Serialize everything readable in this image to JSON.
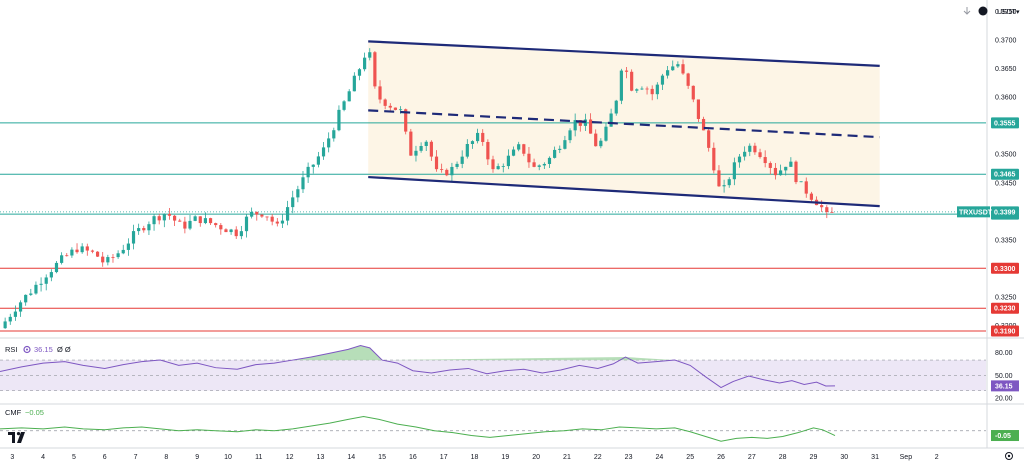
{
  "header": {
    "currency": "USDT",
    "currency_caret": "▾"
  },
  "chart_data": {
    "type": "candlestick",
    "symbol_label": "TRXUSDT",
    "y_ticks": [
      0.319,
      0.32,
      0.325,
      0.33,
      0.335,
      0.34,
      0.345,
      0.35,
      0.355,
      0.36,
      0.365,
      0.37,
      0.375
    ],
    "y_range": [
      0.3183,
      0.376
    ],
    "x_ticks": [
      {
        "label": "3",
        "day": 3
      },
      {
        "label": "4",
        "day": 4
      },
      {
        "label": "5",
        "day": 5
      },
      {
        "label": "6",
        "day": 6
      },
      {
        "label": "7",
        "day": 7
      },
      {
        "label": "8",
        "day": 8
      },
      {
        "label": "9",
        "day": 9
      },
      {
        "label": "10",
        "day": 10
      },
      {
        "label": "11",
        "day": 11
      },
      {
        "label": "12",
        "day": 12
      },
      {
        "label": "13",
        "day": 13
      },
      {
        "label": "14",
        "day": 14
      },
      {
        "label": "15",
        "day": 15
      },
      {
        "label": "16",
        "day": 16
      },
      {
        "label": "17",
        "day": 17
      },
      {
        "label": "18",
        "day": 18
      },
      {
        "label": "19",
        "day": 19
      },
      {
        "label": "20",
        "day": 20
      },
      {
        "label": "21",
        "day": 21
      },
      {
        "label": "22",
        "day": 22
      },
      {
        "label": "23",
        "day": 23
      },
      {
        "label": "24",
        "day": 24
      },
      {
        "label": "25",
        "day": 25
      },
      {
        "label": "26",
        "day": 26
      },
      {
        "label": "27",
        "day": 27
      },
      {
        "label": "28",
        "day": 28
      },
      {
        "label": "29",
        "day": 29
      },
      {
        "label": "30",
        "day": 30
      },
      {
        "label": "31",
        "day": 31
      },
      {
        "label": "Sep",
        "day": 32
      },
      {
        "label": "2",
        "day": 33
      }
    ],
    "x_range": [
      2.6,
      34.6
    ],
    "horizontal_levels": [
      {
        "value": 0.3555,
        "label": "0.3555",
        "color": "#26a69a"
      },
      {
        "value": 0.3465,
        "label": "0.3465",
        "color": "#26a69a"
      },
      {
        "value": 0.3395,
        "label": "0.3395",
        "color": "#26a69a"
      },
      {
        "value": 0.33,
        "label": "0.3300",
        "color": "#e53935"
      },
      {
        "value": 0.323,
        "label": "0.3230",
        "color": "#e53935"
      },
      {
        "value": 0.319,
        "label": "0.3190",
        "color": "#e53935"
      }
    ],
    "current_price": {
      "value": 0.3399,
      "label": "0.3399",
      "color": "#26a69a"
    },
    "channel": {
      "upper": [
        [
          14.55,
          0.3698
        ],
        [
          31.15,
          0.3655
        ]
      ],
      "middle": [
        [
          14.55,
          0.3577
        ],
        [
          31.15,
          0.353
        ]
      ],
      "lower": [
        [
          14.55,
          0.346
        ],
        [
          31.15,
          0.3409
        ]
      ],
      "fill_color": "#fdf5e6",
      "line_color": "#1e2a78"
    },
    "up_color": "#26a69a",
    "down_color": "#ef5350",
    "anchors": [
      [
        2.6,
        0.3195
      ],
      [
        3.2,
        0.3238
      ],
      [
        3.6,
        0.326
      ],
      [
        4.1,
        0.329
      ],
      [
        4.6,
        0.3315
      ],
      [
        5.1,
        0.3335
      ],
      [
        5.7,
        0.3325
      ],
      [
        6.0,
        0.3308
      ],
      [
        6.5,
        0.333
      ],
      [
        7.0,
        0.3362
      ],
      [
        7.5,
        0.3385
      ],
      [
        8.0,
        0.3398
      ],
      [
        8.5,
        0.3372
      ],
      [
        9.0,
        0.3388
      ],
      [
        9.5,
        0.3378
      ],
      [
        10.0,
        0.3368
      ],
      [
        10.3,
        0.3362
      ],
      [
        10.7,
        0.3395
      ],
      [
        11.2,
        0.3398
      ],
      [
        11.6,
        0.3372
      ],
      [
        12.1,
        0.3425
      ],
      [
        12.6,
        0.347
      ],
      [
        13.1,
        0.3508
      ],
      [
        13.6,
        0.357
      ],
      [
        14.0,
        0.3618
      ],
      [
        14.3,
        0.3655
      ],
      [
        14.55,
        0.369
      ],
      [
        14.8,
        0.3602
      ],
      [
        15.2,
        0.3588
      ],
      [
        15.6,
        0.3575
      ],
      [
        15.9,
        0.35
      ],
      [
        16.4,
        0.353
      ],
      [
        16.8,
        0.3462
      ],
      [
        17.3,
        0.3475
      ],
      [
        17.7,
        0.351
      ],
      [
        18.2,
        0.3535
      ],
      [
        18.6,
        0.347
      ],
      [
        19.0,
        0.3488
      ],
      [
        19.5,
        0.3515
      ],
      [
        19.9,
        0.3475
      ],
      [
        20.4,
        0.349
      ],
      [
        20.8,
        0.352
      ],
      [
        21.2,
        0.3558
      ],
      [
        21.6,
        0.3553
      ],
      [
        22.0,
        0.351
      ],
      [
        22.3,
        0.3545
      ],
      [
        22.6,
        0.3598
      ],
      [
        22.8,
        0.3665
      ],
      [
        23.1,
        0.3618
      ],
      [
        23.5,
        0.3622
      ],
      [
        23.8,
        0.3604
      ],
      [
        24.2,
        0.365
      ],
      [
        24.6,
        0.3658
      ],
      [
        25.0,
        0.3608
      ],
      [
        25.3,
        0.356
      ],
      [
        25.7,
        0.3495
      ],
      [
        26.0,
        0.3425
      ],
      [
        26.3,
        0.3465
      ],
      [
        26.7,
        0.3508
      ],
      [
        27.0,
        0.3515
      ],
      [
        27.4,
        0.3495
      ],
      [
        27.8,
        0.3465
      ],
      [
        28.2,
        0.349
      ],
      [
        28.5,
        0.345
      ],
      [
        28.9,
        0.3428
      ],
      [
        29.2,
        0.3412
      ],
      [
        29.45,
        0.339
      ],
      [
        29.7,
        0.3399
      ]
    ],
    "rsi": {
      "label": "RSI",
      "value": "36.15",
      "extra": "Ø Ø",
      "color": "#7e57c2",
      "levels": [
        70,
        50,
        30
      ],
      "range": [
        15,
        95
      ],
      "series": [
        [
          2.6,
          55
        ],
        [
          3.3,
          61
        ],
        [
          4.0,
          66
        ],
        [
          4.7,
          68
        ],
        [
          5.3,
          63
        ],
        [
          6.0,
          59
        ],
        [
          6.6,
          64
        ],
        [
          7.2,
          68
        ],
        [
          7.8,
          70
        ],
        [
          8.4,
          63
        ],
        [
          9.0,
          66
        ],
        [
          9.6,
          60
        ],
        [
          10.3,
          58
        ],
        [
          10.9,
          64
        ],
        [
          11.5,
          66
        ],
        [
          12.1,
          70
        ],
        [
          12.7,
          74
        ],
        [
          13.3,
          79
        ],
        [
          13.9,
          84
        ],
        [
          14.3,
          89
        ],
        [
          14.6,
          86
        ],
        [
          15.0,
          70
        ],
        [
          15.5,
          66
        ],
        [
          16.0,
          56
        ],
        [
          16.6,
          53
        ],
        [
          17.2,
          57
        ],
        [
          17.8,
          59
        ],
        [
          18.4,
          52
        ],
        [
          19.0,
          56
        ],
        [
          19.6,
          58
        ],
        [
          20.2,
          53
        ],
        [
          20.8,
          57
        ],
        [
          21.4,
          63
        ],
        [
          22.0,
          59
        ],
        [
          22.5,
          65
        ],
        [
          22.9,
          74
        ],
        [
          23.3,
          66
        ],
        [
          23.9,
          68
        ],
        [
          24.5,
          70
        ],
        [
          25.0,
          63
        ],
        [
          25.5,
          48
        ],
        [
          26.0,
          34
        ],
        [
          26.4,
          42
        ],
        [
          26.9,
          49
        ],
        [
          27.4,
          44
        ],
        [
          27.9,
          40
        ],
        [
          28.3,
          43
        ],
        [
          28.7,
          38
        ],
        [
          29.1,
          41
        ],
        [
          29.4,
          36
        ],
        [
          29.7,
          36.15
        ]
      ]
    },
    "cmf": {
      "label": "CMF",
      "value": "−0.05",
      "badge": "-0.05",
      "color": "#4caf50",
      "zero_level": 0,
      "range": [
        -0.16,
        0.26
      ],
      "series": [
        [
          2.6,
          0.02
        ],
        [
          3.3,
          0.03
        ],
        [
          4.0,
          0.02
        ],
        [
          4.7,
          0.04
        ],
        [
          5.3,
          0.02
        ],
        [
          6.0,
          0.01
        ],
        [
          6.6,
          0.03
        ],
        [
          7.2,
          0.04
        ],
        [
          7.8,
          0.02
        ],
        [
          8.4,
          0.0
        ],
        [
          9.0,
          0.01
        ],
        [
          9.6,
          0.0
        ],
        [
          10.3,
          -0.01
        ],
        [
          10.9,
          0.01
        ],
        [
          11.5,
          0.0
        ],
        [
          12.1,
          0.02
        ],
        [
          12.7,
          0.05
        ],
        [
          13.3,
          0.08
        ],
        [
          13.9,
          0.12
        ],
        [
          14.4,
          0.15
        ],
        [
          14.9,
          0.12
        ],
        [
          15.5,
          0.07
        ],
        [
          16.1,
          0.04
        ],
        [
          16.7,
          0.0
        ],
        [
          17.3,
          -0.02
        ],
        [
          17.9,
          -0.05
        ],
        [
          18.5,
          -0.07
        ],
        [
          19.1,
          -0.05
        ],
        [
          19.7,
          -0.03
        ],
        [
          20.3,
          -0.01
        ],
        [
          20.9,
          0.0
        ],
        [
          21.5,
          0.02
        ],
        [
          22.1,
          0.01
        ],
        [
          22.7,
          0.04
        ],
        [
          23.3,
          0.03
        ],
        [
          23.9,
          0.02
        ],
        [
          24.5,
          0.03
        ],
        [
          25.0,
          -0.01
        ],
        [
          25.5,
          -0.06
        ],
        [
          26.0,
          -0.11
        ],
        [
          26.5,
          -0.08
        ],
        [
          27.0,
          -0.07
        ],
        [
          27.5,
          -0.08
        ],
        [
          28.0,
          -0.06
        ],
        [
          28.5,
          -0.02
        ],
        [
          29.0,
          0.03
        ],
        [
          29.3,
          0.01
        ],
        [
          29.7,
          -0.05
        ]
      ]
    }
  }
}
